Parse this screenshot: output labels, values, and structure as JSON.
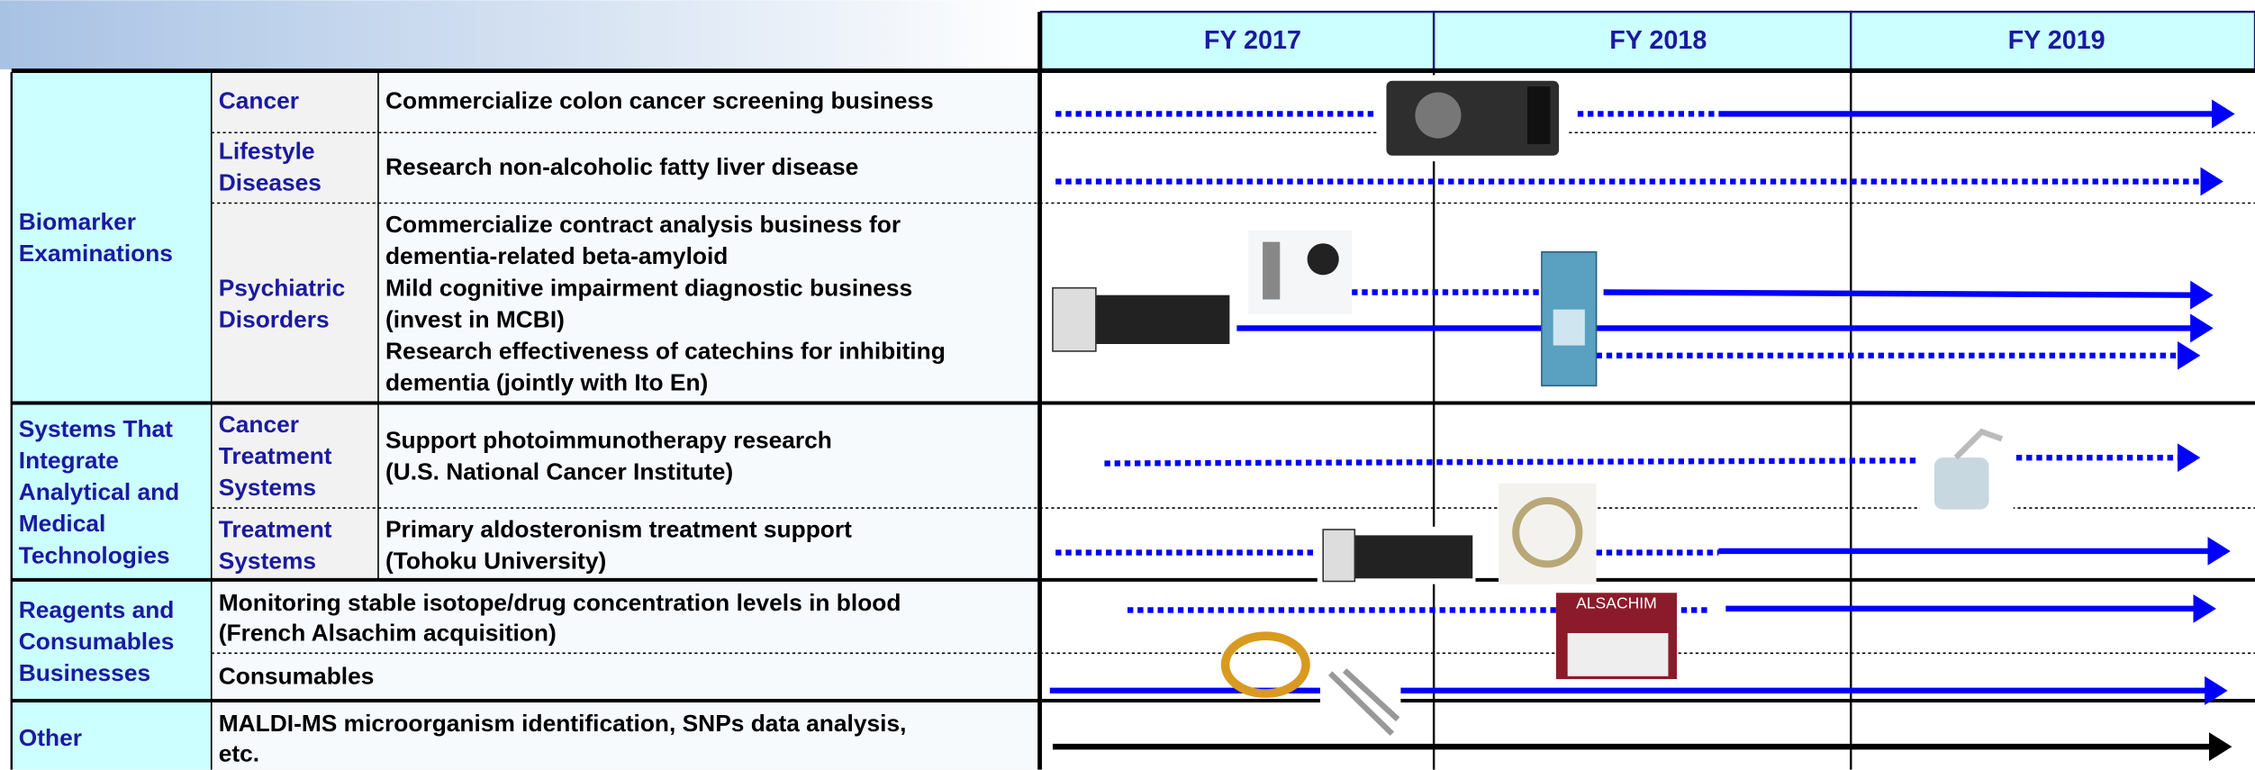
{
  "header": {
    "years": [
      "FY 2017",
      "FY 2018",
      "FY 2019"
    ]
  },
  "groups": [
    {
      "label_lines": [
        "Biomarker",
        "Examinations"
      ],
      "rows": [
        {
          "subcategory_lines": [
            "Cancer"
          ],
          "description_lines": [
            "Commercialize colon cancer screening business"
          ]
        },
        {
          "subcategory_lines": [
            "Lifestyle",
            "Diseases"
          ],
          "description_lines": [
            "Research non-alcoholic fatty liver disease"
          ]
        },
        {
          "subcategory_lines": [
            "Psychiatric",
            "Disorders"
          ],
          "description_lines": [
            "Commercialize contract analysis business for",
            "dementia-related beta-amyloid",
            "Mild cognitive impairment diagnostic business",
            "(invest in MCBI)",
            "Research effectiveness of catechins for inhibiting",
            "dementia (jointly with Ito En)"
          ]
        }
      ]
    },
    {
      "label_lines": [
        "Systems That",
        "Integrate",
        "Analytical and",
        "Medical",
        "Technologies"
      ],
      "rows": [
        {
          "subcategory_lines": [
            "Cancer",
            "Treatment",
            "Systems"
          ],
          "description_lines": [
            "Support photoimmunotherapy research",
            "(U.S. National Cancer Institute)"
          ]
        },
        {
          "subcategory_lines": [
            "Treatment",
            "Systems"
          ],
          "description_lines": [
            "Primary aldosteronism treatment support",
            "(Tohoku University)"
          ]
        }
      ]
    },
    {
      "label_lines": [
        "Reagents and",
        "Consumables",
        "Businesses"
      ],
      "rows": [
        {
          "description_lines": [
            "Monitoring stable isotope/drug concentration levels in blood",
            "(French Alsachim acquisition)"
          ]
        },
        {
          "description_lines": [
            "Consumables"
          ]
        }
      ]
    },
    {
      "label_lines": [
        "Other"
      ],
      "rows": [
        {
          "description_lines": [
            "MALDI-MS microorganism identification, SNPs data analysis,",
            "etc."
          ]
        }
      ]
    }
  ],
  "image_label": "ALSACHIM"
}
